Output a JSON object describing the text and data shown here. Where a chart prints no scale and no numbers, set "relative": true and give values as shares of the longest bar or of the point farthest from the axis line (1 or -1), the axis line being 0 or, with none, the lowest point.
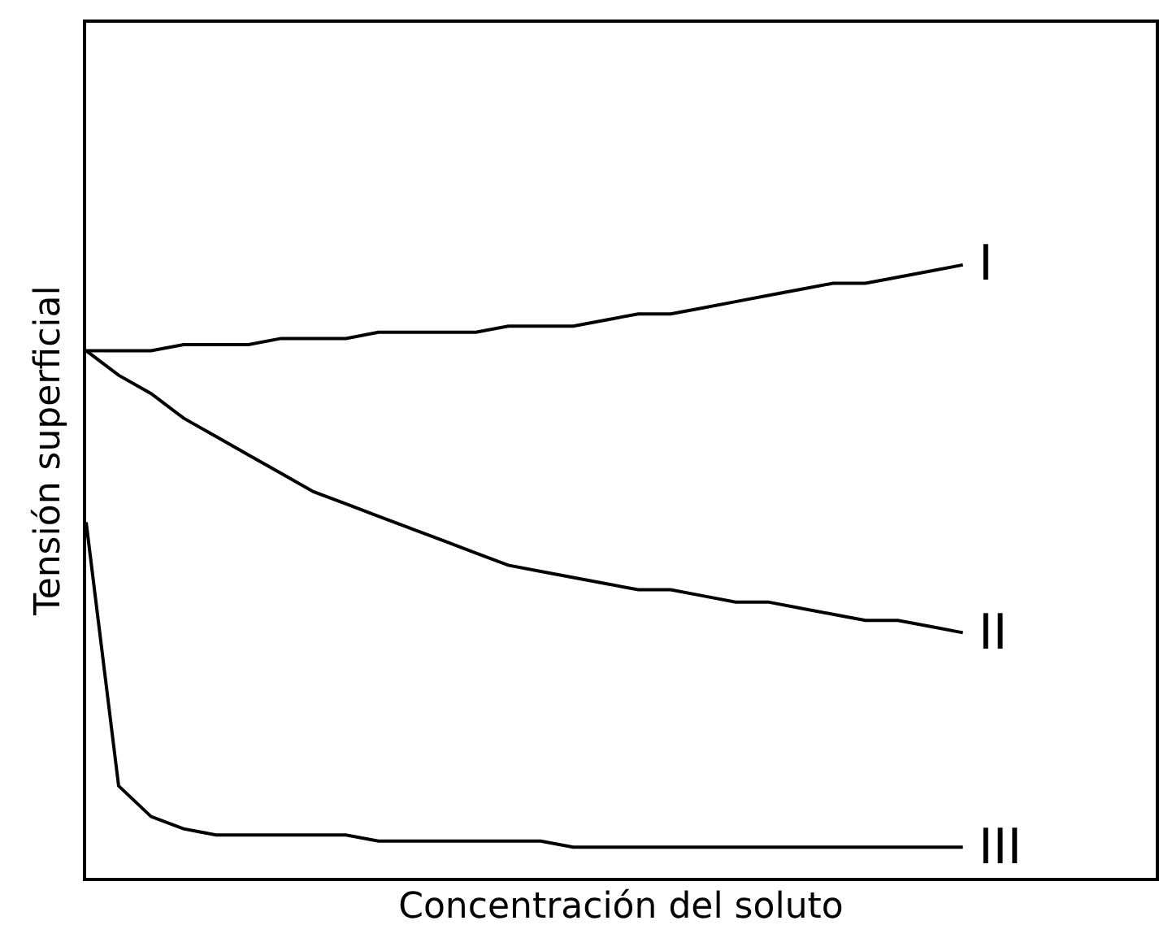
{
  "chart_data": {
    "type": "line",
    "relative": true,
    "xlabel": "Concentración del soluto",
    "ylabel": "Tensión superficial",
    "legend": false,
    "marker": "none",
    "line_style": "solid",
    "categories": [
      null,
      null,
      null,
      null,
      null,
      null,
      null,
      null,
      null,
      null,
      null,
      null,
      null,
      null,
      null,
      null,
      null,
      null,
      null,
      null,
      null,
      null,
      null,
      null,
      null,
      null,
      null,
      null
    ],
    "series": [
      {
        "name": "I",
        "color": "#000000",
        "values": [
          0.86,
          0.86,
          0.86,
          0.87,
          0.87,
          0.87,
          0.88,
          0.88,
          0.88,
          0.89,
          0.89,
          0.89,
          0.89,
          0.9,
          0.9,
          0.9,
          0.91,
          0.92,
          0.92,
          0.93,
          0.94,
          0.95,
          0.96,
          0.97,
          0.97,
          0.98,
          0.99,
          1
        ]
      },
      {
        "name": "II",
        "color": "#000000",
        "values": [
          0.86,
          0.82,
          0.79,
          0.75,
          0.72,
          0.69,
          0.66,
          0.63,
          0.61,
          0.59,
          0.57,
          0.55,
          0.53,
          0.51,
          0.5,
          0.49,
          0.48,
          0.47,
          0.47,
          0.46,
          0.45,
          0.45,
          0.44,
          0.43,
          0.42,
          0.42,
          0.41,
          0.4
        ]
      },
      {
        "name": "III",
        "color": "#000000",
        "values": [
          0.58,
          0.15,
          0.1,
          0.08,
          0.07,
          0.07,
          0.07,
          0.07,
          0.07,
          0.06,
          0.06,
          0.06,
          0.06,
          0.06,
          0.06,
          0.05,
          0.05,
          0.05,
          0.05,
          0.05,
          0.05,
          0.05,
          0.05,
          0.05,
          0.05,
          0.05,
          0.05,
          0.05
        ]
      }
    ]
  }
}
